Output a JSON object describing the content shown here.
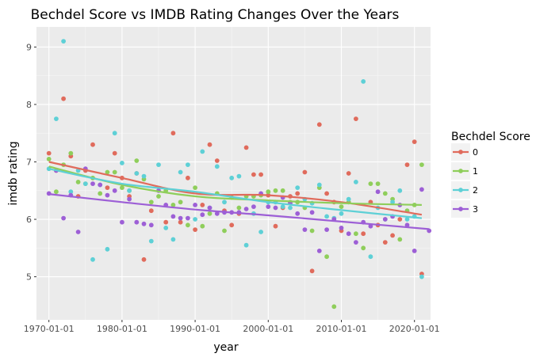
{
  "chart_data": {
    "type": "scatter",
    "title": "Bechdel Score vs IMDB Rating Changes Over the Years",
    "xlabel": "year",
    "ylabel": "imdb rating",
    "xlim": [
      1968.3,
      2022.2
    ],
    "ylim": [
      4.25,
      9.35
    ],
    "x_ticks": [
      {
        "value": 1970,
        "label": "1970-01-01"
      },
      {
        "value": 1980,
        "label": "1980-01-01"
      },
      {
        "value": 1990,
        "label": "1990-01-01"
      },
      {
        "value": 2000,
        "label": "2000-01-01"
      },
      {
        "value": 2010,
        "label": "2010-01-01"
      },
      {
        "value": 2020,
        "label": "2020-01-01"
      }
    ],
    "y_ticks": [
      {
        "value": 5,
        "label": "5"
      },
      {
        "value": 6,
        "label": "6"
      },
      {
        "value": 7,
        "label": "7"
      },
      {
        "value": 8,
        "label": "8"
      },
      {
        "value": 9,
        "label": "9"
      }
    ],
    "grid": true,
    "legend": {
      "title": "Bechdel Score",
      "position": "right"
    },
    "series": [
      {
        "name": "0",
        "color": "#e06b5c",
        "trend": [
          [
            1970,
            7.0
          ],
          [
            1980,
            6.72
          ],
          [
            1990,
            6.45
          ],
          [
            2000,
            6.42
          ],
          [
            2010,
            6.3
          ],
          [
            2021,
            6.08
          ]
        ],
        "points": [
          [
            1970,
            7.15
          ],
          [
            1971,
            6.85
          ],
          [
            1972,
            8.1
          ],
          [
            1973,
            7.1
          ],
          [
            1974,
            6.4
          ],
          [
            1975,
            6.85
          ],
          [
            1976,
            7.3
          ],
          [
            1978,
            6.55
          ],
          [
            1979,
            7.15
          ],
          [
            1980,
            6.72
          ],
          [
            1981,
            6.4
          ],
          [
            1982,
            6.8
          ],
          [
            1983,
            5.3
          ],
          [
            1984,
            6.15
          ],
          [
            1986,
            5.95
          ],
          [
            1987,
            7.5
          ],
          [
            1988,
            5.95
          ],
          [
            1989,
            6.72
          ],
          [
            1990,
            5.82
          ],
          [
            1991,
            6.25
          ],
          [
            1992,
            7.3
          ],
          [
            1993,
            7.02
          ],
          [
            1994,
            6.15
          ],
          [
            1995,
            5.9
          ],
          [
            1996,
            6.1
          ],
          [
            1997,
            7.25
          ],
          [
            1998,
            6.78
          ],
          [
            1999,
            6.78
          ],
          [
            2000,
            6.42
          ],
          [
            2001,
            5.88
          ],
          [
            2002,
            6.2
          ],
          [
            2003,
            6.4
          ],
          [
            2004,
            6.45
          ],
          [
            2005,
            6.82
          ],
          [
            2006,
            5.1
          ],
          [
            2007,
            7.65
          ],
          [
            2008,
            6.45
          ],
          [
            2009,
            6.3
          ],
          [
            2010,
            5.8
          ],
          [
            2011,
            6.8
          ],
          [
            2012,
            7.75
          ],
          [
            2013,
            5.75
          ],
          [
            2014,
            6.3
          ],
          [
            2015,
            5.9
          ],
          [
            2016,
            5.6
          ],
          [
            2017,
            5.72
          ],
          [
            2018,
            6.0
          ],
          [
            2019,
            6.95
          ],
          [
            2020,
            7.35
          ],
          [
            2021,
            5.05
          ]
        ]
      },
      {
        "name": "1",
        "color": "#8fce5b",
        "trend": [
          [
            1970,
            6.92
          ],
          [
            1980,
            6.6
          ],
          [
            1990,
            6.4
          ],
          [
            2000,
            6.33
          ],
          [
            2010,
            6.28
          ],
          [
            2021,
            6.25
          ]
        ],
        "points": [
          [
            1970,
            7.05
          ],
          [
            1971,
            6.48
          ],
          [
            1972,
            6.95
          ],
          [
            1973,
            7.15
          ],
          [
            1974,
            6.65
          ],
          [
            1975,
            6.62
          ],
          [
            1976,
            6.72
          ],
          [
            1977,
            6.45
          ],
          [
            1978,
            6.82
          ],
          [
            1979,
            6.82
          ],
          [
            1980,
            6.55
          ],
          [
            1981,
            6.5
          ],
          [
            1982,
            7.02
          ],
          [
            1983,
            6.7
          ],
          [
            1984,
            6.3
          ],
          [
            1985,
            6.4
          ],
          [
            1986,
            6.5
          ],
          [
            1987,
            6.25
          ],
          [
            1988,
            6.3
          ],
          [
            1989,
            5.9
          ],
          [
            1990,
            6.55
          ],
          [
            1991,
            5.88
          ],
          [
            1992,
            6.1
          ],
          [
            1993,
            6.45
          ],
          [
            1994,
            5.8
          ],
          [
            1995,
            6.38
          ],
          [
            1996,
            6.2
          ],
          [
            1997,
            6.4
          ],
          [
            1998,
            6.4
          ],
          [
            1999,
            6.42
          ],
          [
            2000,
            6.48
          ],
          [
            2001,
            6.5
          ],
          [
            2002,
            6.5
          ],
          [
            2003,
            6.3
          ],
          [
            2004,
            6.3
          ],
          [
            2005,
            6.2
          ],
          [
            2006,
            5.8
          ],
          [
            2007,
            6.55
          ],
          [
            2008,
            5.35
          ],
          [
            2009,
            4.48
          ],
          [
            2010,
            6.22
          ],
          [
            2011,
            6.3
          ],
          [
            2012,
            5.75
          ],
          [
            2013,
            5.5
          ],
          [
            2014,
            6.62
          ],
          [
            2015,
            6.62
          ],
          [
            2016,
            6.45
          ],
          [
            2017,
            6.35
          ],
          [
            2018,
            5.65
          ],
          [
            2019,
            6.15
          ],
          [
            2020,
            6.25
          ],
          [
            2021,
            6.95
          ]
        ]
      },
      {
        "name": "2",
        "color": "#5ed0d6",
        "trend": [
          [
            1970,
            6.88
          ],
          [
            1980,
            6.62
          ],
          [
            1990,
            6.48
          ],
          [
            2000,
            6.3
          ],
          [
            2010,
            6.16
          ],
          [
            2021,
            6.02
          ]
        ],
        "points": [
          [
            1970,
            6.88
          ],
          [
            1971,
            7.75
          ],
          [
            1972,
            9.1
          ],
          [
            1973,
            6.48
          ],
          [
            1974,
            6.85
          ],
          [
            1975,
            6.62
          ],
          [
            1976,
            5.3
          ],
          [
            1977,
            6.6
          ],
          [
            1978,
            5.48
          ],
          [
            1979,
            7.5
          ],
          [
            1980,
            6.98
          ],
          [
            1981,
            6.5
          ],
          [
            1982,
            6.8
          ],
          [
            1983,
            6.75
          ],
          [
            1984,
            5.62
          ],
          [
            1985,
            6.95
          ],
          [
            1986,
            5.85
          ],
          [
            1987,
            5.65
          ],
          [
            1988,
            6.82
          ],
          [
            1989,
            6.95
          ],
          [
            1990,
            6.0
          ],
          [
            1991,
            7.18
          ],
          [
            1992,
            6.2
          ],
          [
            1993,
            6.92
          ],
          [
            1994,
            6.3
          ],
          [
            1995,
            6.72
          ],
          [
            1996,
            6.75
          ],
          [
            1997,
            5.55
          ],
          [
            1998,
            6.1
          ],
          [
            1999,
            5.78
          ],
          [
            2000,
            6.3
          ],
          [
            2001,
            6.3
          ],
          [
            2002,
            6.22
          ],
          [
            2003,
            6.2
          ],
          [
            2004,
            6.55
          ],
          [
            2005,
            6.35
          ],
          [
            2006,
            6.28
          ],
          [
            2007,
            6.6
          ],
          [
            2008,
            6.05
          ],
          [
            2009,
            6.02
          ],
          [
            2010,
            6.1
          ],
          [
            2011,
            6.35
          ],
          [
            2012,
            6.65
          ],
          [
            2013,
            8.4
          ],
          [
            2014,
            5.35
          ],
          [
            2015,
            6.2
          ],
          [
            2016,
            6.0
          ],
          [
            2017,
            6.3
          ],
          [
            2018,
            6.5
          ],
          [
            2019,
            6.0
          ],
          [
            2020,
            6.05
          ],
          [
            2021,
            5.0
          ]
        ]
      },
      {
        "name": "3",
        "color": "#9d5fd6",
        "trend": [
          [
            1970,
            6.44
          ],
          [
            1980,
            6.3
          ],
          [
            1990,
            6.17
          ],
          [
            2000,
            6.07
          ],
          [
            2010,
            5.96
          ],
          [
            2022,
            5.83
          ]
        ],
        "points": [
          [
            1970,
            6.45
          ],
          [
            1971,
            6.85
          ],
          [
            1972,
            6.02
          ],
          [
            1973,
            6.42
          ],
          [
            1974,
            5.78
          ],
          [
            1975,
            6.88
          ],
          [
            1976,
            6.62
          ],
          [
            1977,
            6.6
          ],
          [
            1978,
            6.42
          ],
          [
            1979,
            6.5
          ],
          [
            1980,
            5.95
          ],
          [
            1981,
            6.35
          ],
          [
            1982,
            5.95
          ],
          [
            1983,
            5.92
          ],
          [
            1984,
            5.9
          ],
          [
            1985,
            6.5
          ],
          [
            1986,
            6.25
          ],
          [
            1987,
            6.05
          ],
          [
            1988,
            6.02
          ],
          [
            1989,
            6.02
          ],
          [
            1990,
            6.25
          ],
          [
            1991,
            6.08
          ],
          [
            1992,
            6.2
          ],
          [
            1993,
            6.1
          ],
          [
            1994,
            6.12
          ],
          [
            1995,
            6.12
          ],
          [
            1996,
            6.12
          ],
          [
            1997,
            6.18
          ],
          [
            1998,
            6.22
          ],
          [
            1999,
            6.45
          ],
          [
            2000,
            6.22
          ],
          [
            2001,
            6.2
          ],
          [
            2002,
            6.38
          ],
          [
            2003,
            6.28
          ],
          [
            2004,
            6.1
          ],
          [
            2005,
            5.82
          ],
          [
            2006,
            6.12
          ],
          [
            2007,
            5.45
          ],
          [
            2008,
            5.82
          ],
          [
            2009,
            6.0
          ],
          [
            2010,
            5.85
          ],
          [
            2011,
            5.75
          ],
          [
            2012,
            5.6
          ],
          [
            2013,
            5.95
          ],
          [
            2014,
            5.88
          ],
          [
            2015,
            6.48
          ],
          [
            2016,
            6.0
          ],
          [
            2017,
            6.05
          ],
          [
            2018,
            6.25
          ],
          [
            2019,
            5.9
          ],
          [
            2020,
            5.45
          ],
          [
            2021,
            6.52
          ],
          [
            2022,
            5.8
          ]
        ]
      }
    ]
  }
}
